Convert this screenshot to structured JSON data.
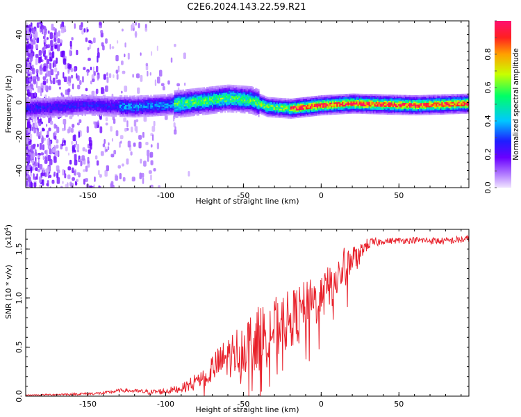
{
  "title": "C2E6.2024.143.22.59.R21",
  "chart_data": [
    {
      "type": "heatmap",
      "xlabel": "Height of straight line (km)",
      "ylabel": "Frequency (Hz)",
      "xlim": [
        -190,
        95
      ],
      "ylim": [
        -50,
        48
      ],
      "xticks": [
        -150,
        -100,
        -50,
        0,
        50
      ],
      "yticks": [
        -40,
        -20,
        0,
        20,
        40
      ],
      "colorbar": {
        "label": "Normalized spectral amplitude",
        "ticks": [
          0.0,
          0.2,
          0.4,
          0.6,
          0.8
        ],
        "range": [
          0,
          1
        ],
        "colors": [
          "#e9d7ff",
          "#8a2be2",
          "#1a1aff",
          "#00c8ff",
          "#00ff80",
          "#c8ff00",
          "#ffa000",
          "#ff2020",
          "#ff1070"
        ]
      },
      "band_center_hz": [
        {
          "x": -190,
          "f": -3
        },
        {
          "x": -150,
          "f": -1
        },
        {
          "x": -120,
          "f": -2
        },
        {
          "x": -100,
          "f": -1
        },
        {
          "x": -80,
          "f": 1
        },
        {
          "x": -60,
          "f": 3
        },
        {
          "x": -45,
          "f": 2
        },
        {
          "x": -35,
          "f": -2
        },
        {
          "x": -20,
          "f": -3
        },
        {
          "x": 0,
          "f": -1
        },
        {
          "x": 20,
          "f": 0
        },
        {
          "x": 60,
          "f": -1
        },
        {
          "x": 95,
          "f": 0
        }
      ]
    },
    {
      "type": "line",
      "xlabel": "Height of straight line (km)",
      "ylabel": "SNR (10 * v/v)",
      "scale_note": "(x10",
      "scale_exp": "4",
      "scale_close": ")",
      "xlim": [
        -190,
        95
      ],
      "ylim": [
        0,
        1.7
      ],
      "xticks": [
        -150,
        -100,
        -50,
        0,
        50
      ],
      "yticks": [
        0.0,
        0.5,
        1.0,
        1.5
      ],
      "ytick_labels": [
        "0.0",
        "0.5",
        "1.0",
        "1.5"
      ],
      "series": [
        {
          "color": "#e8202a",
          "points": [
            [
              -190,
              0.01
            ],
            [
              -160,
              0.02
            ],
            [
              -140,
              0.03
            ],
            [
              -128,
              0.06
            ],
            [
              -110,
              0.04
            ],
            [
              -100,
              0.05
            ],
            [
              -90,
              0.08
            ],
            [
              -80,
              0.15
            ],
            [
              -70,
              0.28
            ],
            [
              -60,
              0.4
            ],
            [
              -50,
              0.5
            ],
            [
              -40,
              0.6
            ],
            [
              -30,
              0.68
            ],
            [
              -20,
              0.78
            ],
            [
              -10,
              0.9
            ],
            [
              0,
              1.0
            ],
            [
              5,
              1.1
            ],
            [
              10,
              1.2
            ],
            [
              20,
              1.4
            ],
            [
              30,
              1.55
            ],
            [
              40,
              1.58
            ],
            [
              60,
              1.59
            ],
            [
              80,
              1.58
            ],
            [
              95,
              1.6
            ]
          ],
          "noise_amplitude": [
            [
              -190,
              0.005
            ],
            [
              -120,
              0.02
            ],
            [
              -90,
              0.04
            ],
            [
              -75,
              0.12
            ],
            [
              -55,
              0.25
            ],
            [
              -35,
              0.35
            ],
            [
              -20,
              0.3
            ],
            [
              0,
              0.25
            ],
            [
              15,
              0.22
            ],
            [
              25,
              0.08
            ],
            [
              40,
              0.03
            ],
            [
              95,
              0.04
            ]
          ]
        }
      ]
    }
  ]
}
